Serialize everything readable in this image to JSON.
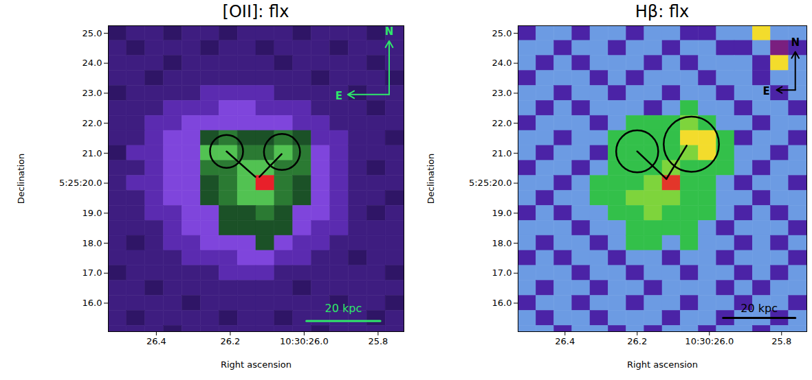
{
  "chart_data": [
    {
      "type": "heatmap",
      "title": "[OII]: flx",
      "x_label": "Right ascension",
      "y_label": "Declination",
      "xlim": [
        26.53,
        25.73
      ],
      "ylim": [
        15.05,
        25.25
      ],
      "xticks": [
        26.4,
        26.2,
        {
          "value": 26.0,
          "label": "10:30:26.0"
        },
        25.8
      ],
      "yticks": [
        {
          "value": 25,
          "label": "25.0"
        },
        {
          "value": 24,
          "label": "24.0"
        },
        {
          "value": 23,
          "label": "23.0"
        },
        {
          "value": 22,
          "label": "22.0"
        },
        {
          "value": 21,
          "label": "21.0"
        },
        {
          "value": 20,
          "label": "5:25:20.0"
        },
        {
          "value": 19,
          "label": "19.0"
        },
        {
          "value": 18,
          "label": "18.0"
        },
        {
          "value": 17,
          "label": "17.0"
        },
        {
          "value": 16,
          "label": "16.0"
        }
      ],
      "x": [
        26.505,
        26.455,
        26.405,
        26.355,
        26.305,
        26.255,
        26.205,
        26.155,
        26.105,
        26.055,
        26.005,
        25.955,
        25.905,
        25.855,
        25.805,
        25.755
      ],
      "y": [
        25.0,
        24.5,
        24.0,
        23.5,
        23.0,
        22.5,
        22.0,
        21.5,
        21.0,
        20.5,
        20.0,
        19.5,
        19.0,
        18.5,
        18.0,
        17.5,
        17.0,
        16.5,
        16.0,
        15.5,
        15.0
      ],
      "values": [
        [
          0,
          1,
          1,
          0,
          1,
          1,
          0,
          1,
          1,
          1,
          0,
          1,
          1,
          1,
          0,
          1
        ],
        [
          1,
          0,
          1,
          1,
          1,
          0,
          1,
          1,
          0,
          1,
          1,
          1,
          0,
          1,
          1,
          1
        ],
        [
          1,
          1,
          1,
          0,
          1,
          1,
          1,
          1,
          1,
          0,
          1,
          1,
          1,
          1,
          0,
          1
        ],
        [
          1,
          1,
          0,
          1,
          1,
          1,
          1,
          1,
          1,
          1,
          1,
          0,
          1,
          1,
          1,
          0
        ],
        [
          0,
          1,
          1,
          1,
          1,
          2,
          2,
          2,
          2,
          1,
          1,
          1,
          1,
          0,
          1,
          1
        ],
        [
          1,
          1,
          1,
          2,
          2,
          2,
          3,
          3,
          2,
          2,
          2,
          1,
          1,
          1,
          0,
          1
        ],
        [
          1,
          1,
          2,
          2,
          3,
          3,
          3,
          3,
          3,
          3,
          2,
          2,
          1,
          1,
          1,
          1
        ],
        [
          1,
          1,
          2,
          3,
          3,
          4,
          5,
          4,
          4,
          5,
          4,
          2,
          2,
          1,
          1,
          0
        ],
        [
          0,
          2,
          2,
          3,
          3,
          6,
          6,
          5,
          5,
          6,
          5,
          3,
          2,
          1,
          1,
          1
        ],
        [
          1,
          1,
          2,
          3,
          3,
          5,
          5,
          6,
          6,
          5,
          5,
          3,
          2,
          1,
          0,
          1
        ],
        [
          1,
          2,
          2,
          3,
          3,
          4,
          5,
          6,
          7,
          5,
          4,
          3,
          2,
          1,
          1,
          1
        ],
        [
          1,
          1,
          2,
          3,
          3,
          4,
          5,
          6,
          6,
          5,
          4,
          3,
          2,
          1,
          1,
          0
        ],
        [
          1,
          1,
          2,
          2,
          3,
          3,
          4,
          4,
          5,
          4,
          3,
          3,
          2,
          1,
          0,
          1
        ],
        [
          1,
          1,
          1,
          2,
          3,
          3,
          4,
          4,
          4,
          4,
          3,
          2,
          2,
          1,
          1,
          1
        ],
        [
          1,
          0,
          1,
          2,
          2,
          3,
          3,
          3,
          4,
          3,
          2,
          2,
          1,
          1,
          1,
          1
        ],
        [
          1,
          1,
          1,
          1,
          2,
          2,
          2,
          3,
          3,
          2,
          2,
          1,
          1,
          0,
          1,
          1
        ],
        [
          0,
          1,
          1,
          1,
          1,
          1,
          2,
          2,
          2,
          1,
          1,
          1,
          1,
          1,
          1,
          0
        ],
        [
          1,
          1,
          0,
          1,
          1,
          1,
          1,
          1,
          1,
          1,
          0,
          1,
          1,
          1,
          1,
          1
        ],
        [
          1,
          1,
          1,
          1,
          0,
          1,
          1,
          1,
          1,
          1,
          1,
          1,
          0,
          1,
          1,
          0
        ],
        [
          1,
          0,
          1,
          1,
          1,
          1,
          0,
          1,
          1,
          0,
          1,
          1,
          1,
          1,
          0,
          1
        ],
        [
          1,
          1,
          1,
          0,
          1,
          1,
          1,
          1,
          1,
          1,
          1,
          0,
          1,
          1,
          1,
          1
        ]
      ],
      "colors": [
        "#2f1566",
        "#3e1d80",
        "#5b2bb0",
        "#7f45dc",
        "#1b5127",
        "#2b7a33",
        "#52c252",
        "#e8202a"
      ],
      "circles": [
        {
          "ra": 26.21,
          "dec": 21.06,
          "radius": 0.55
        },
        {
          "ra": 26.06,
          "dec": 21.04,
          "radius": 0.6
        }
      ],
      "lines": [
        {
          "ra": [
            26.21,
            26.132
          ],
          "dec": [
            21.06,
            20.21
          ]
        },
        {
          "ra": [
            26.121,
            26.061
          ],
          "dec": [
            20.21,
            20.97
          ]
        }
      ],
      "compass": {
        "north": "N",
        "east": "E"
      },
      "scale_bar": {
        "label": "20 kpc",
        "length": 0.2
      }
    },
    {
      "type": "heatmap",
      "title": "Hβ: flx",
      "x_label": "Right ascension",
      "y_label": "Declination",
      "xlim": [
        26.53,
        25.73
      ],
      "ylim": [
        15.05,
        25.25
      ],
      "xticks": [
        26.4,
        26.2,
        {
          "value": 26.0,
          "label": "10:30:26.0"
        },
        25.8
      ],
      "yticks": [
        {
          "value": 25,
          "label": "25.0"
        },
        {
          "value": 24,
          "label": "24.0"
        },
        {
          "value": 23,
          "label": "23.0"
        },
        {
          "value": 22,
          "label": "22.0"
        },
        {
          "value": 21,
          "label": "21.0"
        },
        {
          "value": 20,
          "label": "5:25:20.0"
        },
        {
          "value": 19,
          "label": "19.0"
        },
        {
          "value": 18,
          "label": "18.0"
        },
        {
          "value": 17,
          "label": "17.0"
        },
        {
          "value": 16,
          "label": "16.0"
        }
      ],
      "x": [
        26.505,
        26.455,
        26.405,
        26.355,
        26.305,
        26.255,
        26.205,
        26.155,
        26.105,
        26.055,
        26.005,
        25.955,
        25.905,
        25.855,
        25.805,
        25.755
      ],
      "y": [
        25.0,
        24.5,
        24.0,
        23.5,
        23.0,
        22.5,
        22.0,
        21.5,
        21.0,
        20.5,
        20.0,
        19.5,
        19.0,
        18.5,
        18.0,
        17.5,
        17.0,
        16.5,
        16.0,
        15.5,
        15.0
      ],
      "values": [
        [
          1,
          0,
          0,
          1,
          0,
          0,
          1,
          0,
          0,
          1,
          1,
          0,
          0,
          5,
          0,
          0
        ],
        [
          0,
          0,
          1,
          0,
          0,
          1,
          0,
          0,
          1,
          0,
          0,
          1,
          1,
          0,
          2,
          1
        ],
        [
          0,
          1,
          0,
          1,
          0,
          0,
          0,
          1,
          0,
          1,
          0,
          0,
          0,
          1,
          5,
          0
        ],
        [
          1,
          0,
          0,
          0,
          1,
          0,
          1,
          0,
          0,
          0,
          1,
          0,
          0,
          1,
          0,
          0
        ],
        [
          0,
          0,
          1,
          0,
          0,
          1,
          0,
          0,
          1,
          0,
          0,
          1,
          0,
          0,
          1,
          0
        ],
        [
          0,
          1,
          0,
          1,
          0,
          0,
          0,
          1,
          0,
          3,
          0,
          0,
          1,
          0,
          0,
          1
        ],
        [
          1,
          0,
          0,
          0,
          1,
          0,
          3,
          3,
          3,
          4,
          3,
          0,
          0,
          1,
          0,
          0
        ],
        [
          0,
          0,
          1,
          0,
          0,
          3,
          3,
          3,
          3,
          5,
          5,
          3,
          1,
          0,
          0,
          1
        ],
        [
          0,
          1,
          0,
          0,
          1,
          3,
          3,
          3,
          3,
          4,
          5,
          3,
          0,
          0,
          1,
          0
        ],
        [
          1,
          0,
          0,
          1,
          0,
          3,
          3,
          3,
          4,
          3,
          3,
          3,
          0,
          1,
          0,
          0
        ],
        [
          0,
          0,
          1,
          0,
          3,
          3,
          3,
          4,
          6,
          3,
          3,
          0,
          1,
          0,
          0,
          1
        ],
        [
          0,
          1,
          0,
          0,
          3,
          3,
          4,
          4,
          4,
          3,
          3,
          0,
          0,
          1,
          0,
          0
        ],
        [
          1,
          0,
          1,
          0,
          0,
          3,
          3,
          4,
          3,
          3,
          3,
          0,
          1,
          0,
          1,
          0
        ],
        [
          0,
          0,
          0,
          1,
          0,
          0,
          3,
          3,
          3,
          3,
          0,
          1,
          0,
          0,
          0,
          1
        ],
        [
          0,
          1,
          0,
          0,
          1,
          0,
          3,
          3,
          0,
          3,
          0,
          0,
          1,
          0,
          1,
          0
        ],
        [
          1,
          0,
          1,
          0,
          0,
          1,
          0,
          0,
          1,
          0,
          0,
          1,
          0,
          0,
          0,
          1
        ],
        [
          0,
          0,
          0,
          1,
          0,
          0,
          1,
          0,
          0,
          1,
          0,
          0,
          1,
          0,
          1,
          0
        ],
        [
          0,
          1,
          0,
          0,
          1,
          0,
          0,
          1,
          0,
          0,
          0,
          1,
          0,
          1,
          0,
          0
        ],
        [
          1,
          0,
          0,
          1,
          0,
          0,
          1,
          0,
          0,
          1,
          0,
          0,
          1,
          0,
          0,
          1
        ],
        [
          0,
          1,
          0,
          0,
          1,
          0,
          0,
          0,
          1,
          0,
          0,
          1,
          0,
          0,
          1,
          0
        ],
        [
          0,
          0,
          1,
          0,
          0,
          1,
          0,
          1,
          0,
          0,
          1,
          0,
          0,
          1,
          0,
          0
        ]
      ],
      "colors": [
        "#6c9be3",
        "#4b23a6",
        "#7a1f7f",
        "#33c04a",
        "#7ed43c",
        "#f3dc2c",
        "#e3362a"
      ],
      "circles": [
        {
          "ra": 26.2,
          "dec": 21.06,
          "radius": 0.7
        },
        {
          "ra": 26.05,
          "dec": 21.3,
          "radius": 0.92
        }
      ],
      "lines": [
        {
          "ra": [
            26.2,
            26.119
          ],
          "dec": [
            21.06,
            20.14
          ]
        },
        {
          "ra": [
            26.119,
            26.063
          ],
          "dec": [
            20.14,
            21.25
          ]
        }
      ],
      "compass": {
        "north": "N",
        "east": "E"
      },
      "scale_bar": {
        "label": "20 kpc",
        "length": 0.2
      }
    }
  ]
}
